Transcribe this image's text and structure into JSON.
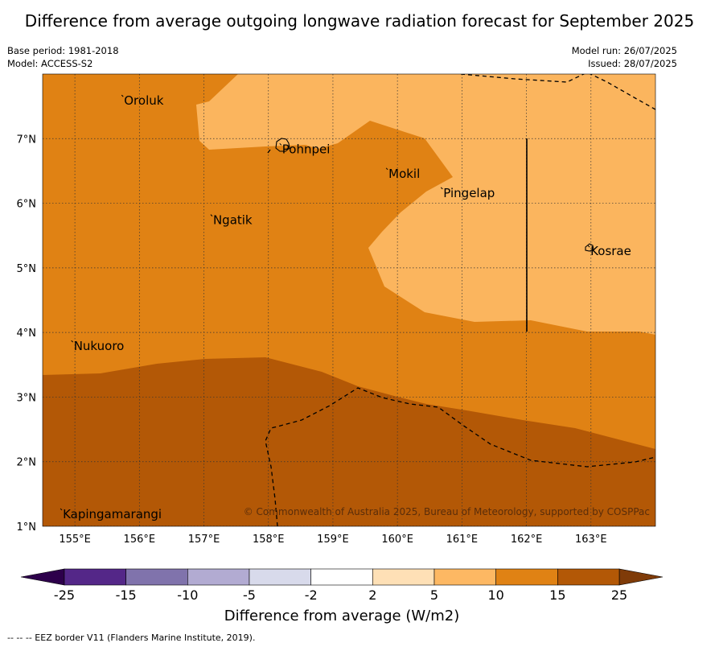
{
  "title": "Difference from average outgoing longwave radiation forecast for September 2025",
  "meta_left": {
    "base_period": "Base period: 1981-2018",
    "model": "Model: ACCESS-S2"
  },
  "meta_right": {
    "model_run": "Model run: 26/07/2025",
    "issued": "Issued: 28/07/2025"
  },
  "map": {
    "lon_range": [
      154.5,
      164.0
    ],
    "lat_range": [
      1.0,
      8.0
    ],
    "lon_ticks": [
      "155°E",
      "156°E",
      "157°E",
      "158°E",
      "159°E",
      "160°E",
      "161°E",
      "162°E",
      "163°E"
    ],
    "lat_ticks": [
      "1°N",
      "2°N",
      "3°N",
      "4°N",
      "5°N",
      "6°N",
      "7°N"
    ],
    "places": [
      {
        "name": "Oroluk",
        "lon": 155.75,
        "lat": 7.65
      },
      {
        "name": "Pohnpei",
        "lon": 158.2,
        "lat": 6.9
      },
      {
        "name": "Mokil",
        "lon": 159.85,
        "lat": 6.52
      },
      {
        "name": "Pingelap",
        "lon": 160.7,
        "lat": 6.22
      },
      {
        "name": "Ngatik",
        "lon": 157.13,
        "lat": 5.8
      },
      {
        "name": "Kosrae",
        "lon": 162.98,
        "lat": 5.32
      },
      {
        "name": "Nukuoro",
        "lon": 154.97,
        "lat": 3.85
      },
      {
        "name": "Kapingamarangi",
        "lon": 154.8,
        "lat": 1.25
      }
    ],
    "copyright": "© Commonwealth of Australia 2025, Bureau of Meteorology, supported by COSPPac",
    "colors": {
      "band_5_10": "#fbb55e",
      "band_10_15": "#e08214",
      "band_15_25": "#b35806"
    }
  },
  "colorbar": {
    "tick_labels": [
      "-25",
      "-15",
      "-10",
      "-5",
      "-2",
      "2",
      "5",
      "10",
      "15",
      "25"
    ],
    "colors": [
      "#542788",
      "#8073ac",
      "#b2abd2",
      "#d8daeb",
      "#ffffff",
      "#fee0b6",
      "#fdb863",
      "#e08214",
      "#b35806"
    ],
    "under_color": "#2d004b",
    "over_color": "#7f3b08",
    "label": "Difference from average (W/m2)"
  },
  "footnote": "--  --  -- EEZ border V11 (Flanders Marine Institute, 2019)."
}
